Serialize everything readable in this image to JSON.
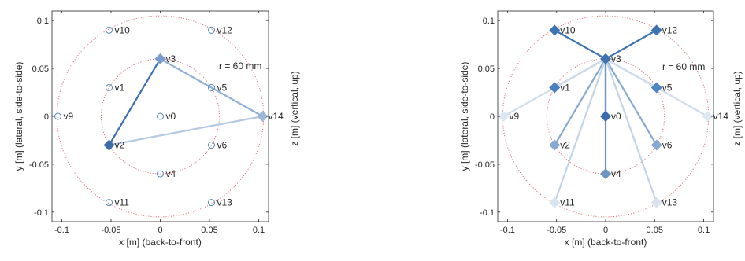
{
  "chart_data": [
    {
      "type": "scatter",
      "xlabel": "x [m] (back-to-front)",
      "ylabel": "y [m] (lateral, side-to-side)",
      "zlabel": "z [m] (vertical, up)",
      "annotation": "r = 60 mm",
      "xlim": [
        -0.11,
        0.11
      ],
      "ylim": [
        -0.11,
        0.11
      ],
      "xticks": [
        -0.1,
        -0.05,
        0,
        0.05,
        0.1
      ],
      "xtick_labels": [
        "-0.1",
        "-0.05",
        "0",
        "0.05",
        "0.1"
      ],
      "yticks": [
        -0.1,
        -0.05,
        0,
        0.05,
        0.1
      ],
      "ytick_labels": [
        "-0.1",
        "-0.05",
        "0",
        "0.05",
        "0.1"
      ],
      "circle_radii": [
        0.06,
        0.105
      ],
      "vertices": [
        {
          "name": "v0",
          "x": 0,
          "y": 0
        },
        {
          "name": "v1",
          "x": -0.052,
          "y": 0.03
        },
        {
          "name": "v2",
          "x": -0.052,
          "y": -0.03
        },
        {
          "name": "v3",
          "x": 0,
          "y": 0.06
        },
        {
          "name": "v4",
          "x": 0,
          "y": -0.06
        },
        {
          "name": "v5",
          "x": 0.052,
          "y": 0.03
        },
        {
          "name": "v6",
          "x": 0.052,
          "y": -0.03
        },
        {
          "name": "v9",
          "x": -0.104,
          "y": 0
        },
        {
          "name": "v10",
          "x": -0.052,
          "y": 0.09
        },
        {
          "name": "v11",
          "x": -0.052,
          "y": -0.09
        },
        {
          "name": "v12",
          "x": 0.052,
          "y": 0.09
        },
        {
          "name": "v13",
          "x": 0.052,
          "y": -0.09
        },
        {
          "name": "v14",
          "x": 0.104,
          "y": 0
        }
      ],
      "edges": [
        {
          "from": "v3",
          "to": "v2",
          "color": "#3b6fae"
        },
        {
          "from": "v3",
          "to": "v14",
          "color": "#8fb0d6"
        },
        {
          "from": "v2",
          "to": "v14",
          "color": "#b3c8e2"
        }
      ],
      "filled_markers": [
        {
          "name": "v3",
          "color": "#7a9ccc"
        },
        {
          "name": "v2",
          "color": "#3c6cab"
        },
        {
          "name": "v14",
          "color": "#9ab8dc"
        }
      ],
      "hollow_marker_color": "#4a86c0"
    },
    {
      "type": "scatter",
      "xlabel": "x [m] (back-to-front)",
      "ylabel": "y [m] (lateral, side-to-side)",
      "zlabel": "z [m] (vertical, up)",
      "annotation": "r = 60 mm",
      "xlim": [
        -0.11,
        0.11
      ],
      "ylim": [
        -0.11,
        0.11
      ],
      "xticks": [
        -0.1,
        -0.05,
        0,
        0.05,
        0.1
      ],
      "xtick_labels": [
        "-0.1",
        "-0.05",
        "0",
        "0.05",
        "0.1"
      ],
      "yticks": [
        -0.1,
        -0.05,
        0,
        0.05,
        0.1
      ],
      "ytick_labels": [
        "-0.1",
        "-0.05",
        "0",
        "0.05",
        "0.1"
      ],
      "circle_radii": [
        0.06,
        0.105
      ],
      "vertices": [
        {
          "name": "v0",
          "x": 0,
          "y": 0
        },
        {
          "name": "v1",
          "x": -0.052,
          "y": 0.03
        },
        {
          "name": "v2",
          "x": -0.052,
          "y": -0.03
        },
        {
          "name": "v3",
          "x": 0,
          "y": 0.06
        },
        {
          "name": "v4",
          "x": 0,
          "y": -0.06
        },
        {
          "name": "v5",
          "x": 0.052,
          "y": 0.03
        },
        {
          "name": "v6",
          "x": 0.052,
          "y": -0.03
        },
        {
          "name": "v9",
          "x": -0.104,
          "y": 0
        },
        {
          "name": "v10",
          "x": -0.052,
          "y": 0.09
        },
        {
          "name": "v11",
          "x": -0.052,
          "y": -0.09
        },
        {
          "name": "v12",
          "x": 0.052,
          "y": 0.09
        },
        {
          "name": "v13",
          "x": 0.052,
          "y": -0.09
        },
        {
          "name": "v14",
          "x": 0.104,
          "y": 0
        }
      ],
      "edges": [
        {
          "from": "v3",
          "to": "v10",
          "color": "#3d72b3"
        },
        {
          "from": "v3",
          "to": "v12",
          "color": "#3d72b3"
        },
        {
          "from": "v3",
          "to": "v1",
          "color": "#4a80bd"
        },
        {
          "from": "v3",
          "to": "v5",
          "color": "#6c98cb"
        },
        {
          "from": "v3",
          "to": "v0",
          "color": "#3a6cad"
        },
        {
          "from": "v3",
          "to": "v2",
          "color": "#86a9d2"
        },
        {
          "from": "v3",
          "to": "v6",
          "color": "#86a9d2"
        },
        {
          "from": "v3",
          "to": "v4",
          "color": "#6d95c6"
        },
        {
          "from": "v3",
          "to": "v9",
          "color": "#cfdcec"
        },
        {
          "from": "v3",
          "to": "v14",
          "color": "#cfdcec"
        },
        {
          "from": "v3",
          "to": "v11",
          "color": "#c3d3e8"
        },
        {
          "from": "v3",
          "to": "v13",
          "color": "#c3d3e8"
        }
      ],
      "filled_markers": [
        {
          "name": "v0",
          "color": "#3a6cad"
        },
        {
          "name": "v1",
          "color": "#4a80bd"
        },
        {
          "name": "v2",
          "color": "#86a9d2"
        },
        {
          "name": "v3",
          "color": "#3d72b3"
        },
        {
          "name": "v4",
          "color": "#6d95c6"
        },
        {
          "name": "v5",
          "color": "#4e86c2"
        },
        {
          "name": "v6",
          "color": "#86a9d2"
        },
        {
          "name": "v9",
          "color": "#dde7f2"
        },
        {
          "name": "v10",
          "color": "#3d72b3"
        },
        {
          "name": "v11",
          "color": "#d8e3f0"
        },
        {
          "name": "v12",
          "color": "#3d72b3"
        },
        {
          "name": "v13",
          "color": "#d8e3f0"
        },
        {
          "name": "v14",
          "color": "#dde7f2"
        }
      ],
      "hollow_marker_color": "#4a86c0"
    }
  ]
}
